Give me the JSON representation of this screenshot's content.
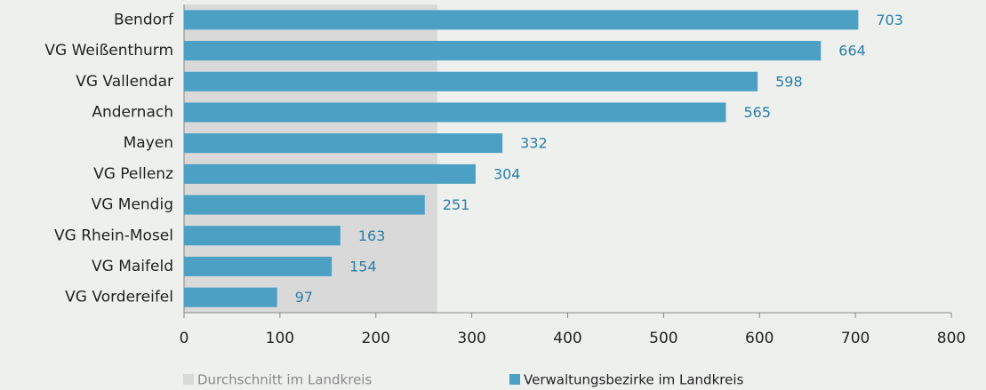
{
  "chart_data": {
    "type": "bar",
    "orientation": "horizontal",
    "categories": [
      "Bendorf",
      "VG Weißenthurm",
      "VG Vallendar",
      "Andernach",
      "Mayen",
      "VG Pellenz",
      "VG Mendig",
      "VG Rhein-Mosel",
      "VG Maifeld",
      "VG Vordereifel"
    ],
    "series": [
      {
        "name": "Verwaltungsbezirke im Landkreis",
        "color": "#4ba0c4",
        "values": [
          703,
          664,
          598,
          565,
          332,
          304,
          251,
          163,
          154,
          97
        ]
      }
    ],
    "average": {
      "name": "Durchschnitt im Landkreis",
      "color": "#d9d9d9",
      "value": 264
    },
    "xlim": [
      0,
      800
    ],
    "xticks": [
      0,
      100,
      200,
      300,
      400,
      500,
      600,
      700,
      800
    ]
  }
}
